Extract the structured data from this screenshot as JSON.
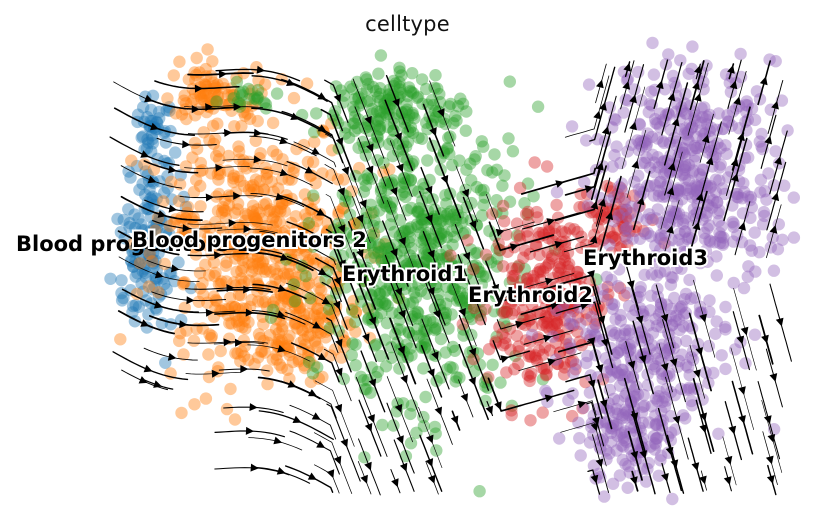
{
  "chart_data": {
    "type": "scatter",
    "title": "celltype",
    "xlabel": "",
    "ylabel": "",
    "grid": false,
    "legend": "on data",
    "overlay": "velocity streamlines",
    "series": [
      {
        "name": "Blood progenitors 1",
        "color": "#1f77b4"
      },
      {
        "name": "Blood progenitors 2",
        "color": "#ff7f0e"
      },
      {
        "name": "Erythroid1",
        "color": "#2ca02c"
      },
      {
        "name": "Erythroid2",
        "color": "#d62728"
      },
      {
        "name": "Erythroid3",
        "color": "#9467bd"
      }
    ]
  }
}
